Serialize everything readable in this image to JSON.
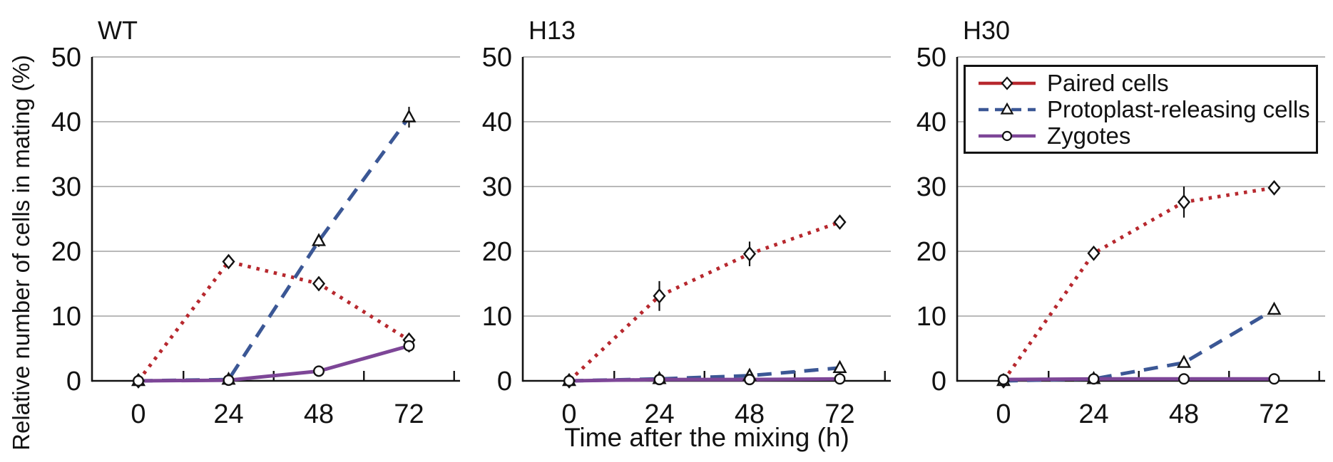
{
  "figure": {
    "y_axis_title": "Relative number of cells in mating (%)",
    "x_axis_title": "Time after the mixing (h)"
  },
  "colors": {
    "paired": "#b7282e",
    "protoplast": "#3b5795",
    "zygotes": "#7d4697",
    "grid": "#b9b9b9",
    "axis": "#121212",
    "marker_fill": "#ffffff"
  },
  "legend": {
    "items": [
      {
        "label": "Paired cells"
      },
      {
        "label": "Protoplast-releasing cells"
      },
      {
        "label": "Zygotes"
      }
    ]
  },
  "chart_data": {
    "type": "line",
    "x": [
      0,
      24,
      48,
      72
    ],
    "xlabel": "Time after the mixing (h)",
    "ylabel": "Relative number of cells in mating (%)",
    "ylim": [
      0,
      50
    ],
    "yticks": [
      0,
      10,
      20,
      30,
      40,
      50
    ],
    "xticks": [
      0,
      24,
      48,
      72
    ],
    "minor_xticks": [
      12,
      36,
      60,
      84
    ],
    "grid": true,
    "legend_position": "top-right-third-panel",
    "series_styles": [
      {
        "name": "Paired cells",
        "color": "#b7282e",
        "line": "dotted",
        "legend_line": "solid",
        "marker": "diamond"
      },
      {
        "name": "Protoplast-releasing cells",
        "color": "#3b5795",
        "line": "dashed",
        "legend_line": "dashed",
        "marker": "triangle"
      },
      {
        "name": "Zygotes",
        "color": "#7d4697",
        "line": "solid",
        "legend_line": "solid",
        "marker": "circle"
      }
    ],
    "panels": [
      {
        "title": "WT",
        "series": [
          {
            "name": "Paired cells",
            "values": [
              0,
              18.4,
              15.0,
              6.3
            ],
            "errors": [
              0,
              0,
              1.1,
              0.9
            ]
          },
          {
            "name": "Protoplast-releasing cells",
            "values": [
              0,
              0.2,
              21.6,
              40.7
            ],
            "errors": [
              0,
              0,
              0.9,
              1.6
            ]
          },
          {
            "name": "Zygotes",
            "values": [
              0,
              0.1,
              1.5,
              5.4
            ],
            "errors": [
              0.5,
              0,
              0.4,
              1.0
            ]
          }
        ]
      },
      {
        "title": "H13",
        "series": [
          {
            "name": "Paired cells",
            "values": [
              0,
              13.1,
              19.6,
              24.5
            ],
            "errors": [
              0.4,
              2.3,
              1.9,
              0
            ]
          },
          {
            "name": "Protoplast-releasing cells",
            "values": [
              0,
              0.3,
              0.8,
              2.0
            ],
            "errors": [
              0,
              0,
              0.3,
              0.9
            ]
          },
          {
            "name": "Zygotes",
            "values": [
              0,
              0.2,
              0.2,
              0.3
            ],
            "errors": [
              0.4,
              0.5,
              0.3,
              0.6
            ]
          }
        ]
      },
      {
        "title": "H30",
        "series": [
          {
            "name": "Paired cells",
            "values": [
              0,
              19.7,
              27.6,
              29.8
            ],
            "errors": [
              0.5,
              0.9,
              2.4,
              0
            ]
          },
          {
            "name": "Protoplast-releasing cells",
            "values": [
              0,
              0.3,
              2.8,
              11.0
            ],
            "errors": [
              0,
              0,
              0,
              0.8
            ]
          },
          {
            "name": "Zygotes",
            "values": [
              0.2,
              0.3,
              0.3,
              0.3
            ],
            "errors": [
              0.5,
              0.4,
              0,
              0
            ]
          }
        ]
      }
    ]
  }
}
